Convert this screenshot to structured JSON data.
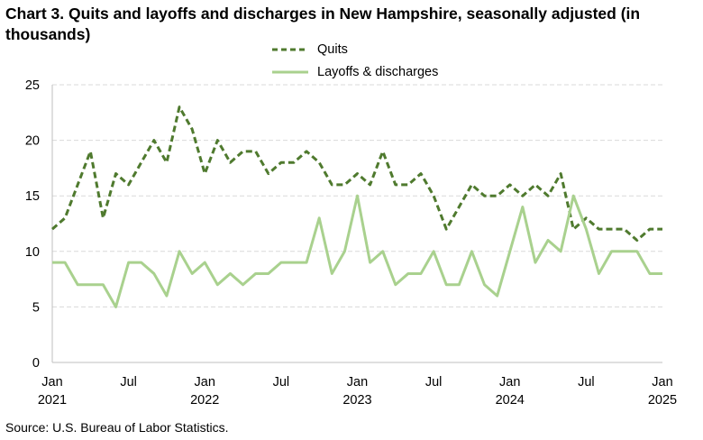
{
  "chart_data": {
    "type": "line",
    "title": "Chart 3. Quits and layoffs and discharges in New Hampshire, seasonally adjusted (in thousands)",
    "source": "Source: U.S. Bureau of Labor Statistics.",
    "ylim": [
      0,
      25
    ],
    "yticks": [
      0,
      5,
      10,
      15,
      20,
      25
    ],
    "grid": true,
    "legend_position": "top-center",
    "x": [
      "2021-01",
      "2021-02",
      "2021-03",
      "2021-04",
      "2021-05",
      "2021-06",
      "2021-07",
      "2021-08",
      "2021-09",
      "2021-10",
      "2021-11",
      "2021-12",
      "2022-01",
      "2022-02",
      "2022-03",
      "2022-04",
      "2022-05",
      "2022-06",
      "2022-07",
      "2022-08",
      "2022-09",
      "2022-10",
      "2022-11",
      "2022-12",
      "2023-01",
      "2023-02",
      "2023-03",
      "2023-04",
      "2023-05",
      "2023-06",
      "2023-07",
      "2023-08",
      "2023-09",
      "2023-10",
      "2023-11",
      "2023-12",
      "2024-01",
      "2024-02",
      "2024-03",
      "2024-04",
      "2024-05",
      "2024-06",
      "2024-07",
      "2024-08",
      "2024-09",
      "2024-10",
      "2024-11",
      "2024-12",
      "2025-01"
    ],
    "xtick_labels": [
      {
        "month": "Jan",
        "year": "2021",
        "index": 0
      },
      {
        "month": "Jul",
        "year": "",
        "index": 6
      },
      {
        "month": "Jan",
        "year": "2022",
        "index": 12
      },
      {
        "month": "Jul",
        "year": "",
        "index": 18
      },
      {
        "month": "Jan",
        "year": "2023",
        "index": 24
      },
      {
        "month": "Jul",
        "year": "",
        "index": 30
      },
      {
        "month": "Jan",
        "year": "2024",
        "index": 36
      },
      {
        "month": "Jul",
        "year": "",
        "index": 42
      },
      {
        "month": "Jan",
        "year": "2025",
        "index": 48
      }
    ],
    "series": [
      {
        "name": "Quits",
        "color": "#4f7a2e",
        "style": "dashed",
        "values": [
          12,
          13,
          16,
          19,
          13,
          17,
          16,
          18,
          20,
          18,
          23,
          21,
          17,
          20,
          18,
          19,
          19,
          17,
          18,
          18,
          19,
          18,
          16,
          16,
          17,
          16,
          19,
          16,
          16,
          17,
          15,
          12,
          14,
          16,
          15,
          15,
          16,
          15,
          16,
          15,
          17,
          12,
          13,
          12,
          12,
          12,
          11,
          12,
          12
        ]
      },
      {
        "name": "Layoffs & discharges",
        "color": "#a9d18e",
        "style": "solid",
        "values": [
          9,
          9,
          7,
          7,
          7,
          5,
          9,
          9,
          8,
          6,
          10,
          8,
          9,
          7,
          8,
          7,
          8,
          8,
          9,
          9,
          9,
          13,
          8,
          10,
          15,
          9,
          10,
          7,
          8,
          8,
          10,
          7,
          7,
          10,
          7,
          6,
          10,
          14,
          9,
          11,
          10,
          15,
          12,
          8,
          10,
          10,
          10,
          8,
          8
        ]
      }
    ]
  }
}
